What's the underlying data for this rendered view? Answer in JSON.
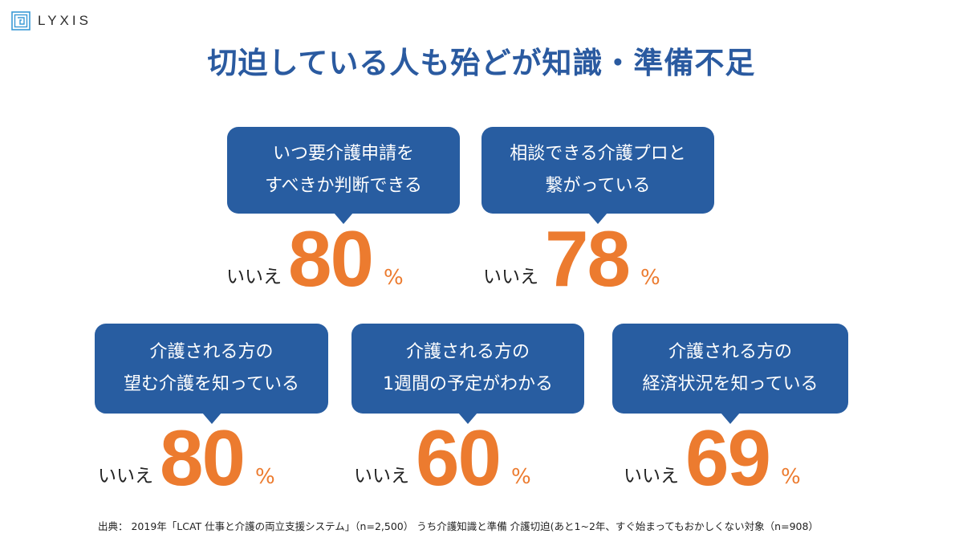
{
  "brand": {
    "name": "LYXIS",
    "logo_icon": "square-spiral-logo",
    "accent": "#3a9ad6"
  },
  "title": "切迫している人も殆どが知識・準備不足",
  "colors": {
    "bubble": "#285da1",
    "value": "#ec7b2f",
    "title": "#2a5aa0"
  },
  "items": [
    {
      "line1": "いつ要介護申請を",
      "line2": "すべきか判断できる",
      "answer": "いいえ",
      "value": "80",
      "unit": "%"
    },
    {
      "line1": "相談できる介護プロと",
      "line2": "繋がっている",
      "answer": "いいえ",
      "value": "78",
      "unit": "%"
    },
    {
      "line1": "介護される方の",
      "line2": "望む介護を知っている",
      "answer": "いいえ",
      "value": "80",
      "unit": "%"
    },
    {
      "line1": "介護される方の",
      "line2": "1週間の予定がわかる",
      "answer": "いいえ",
      "value": "60",
      "unit": "%"
    },
    {
      "line1": "介護される方の",
      "line2": "経済状況を知っている",
      "answer": "いいえ",
      "value": "69",
      "unit": "%"
    }
  ],
  "source": "出典： 2019年「LCAT 仕事と介護の両立支援システム」（n=2,500） うち介護知識と準備 介護切迫(あと1~2年、すぐ始まってもおかしくない対象（n=908）"
}
